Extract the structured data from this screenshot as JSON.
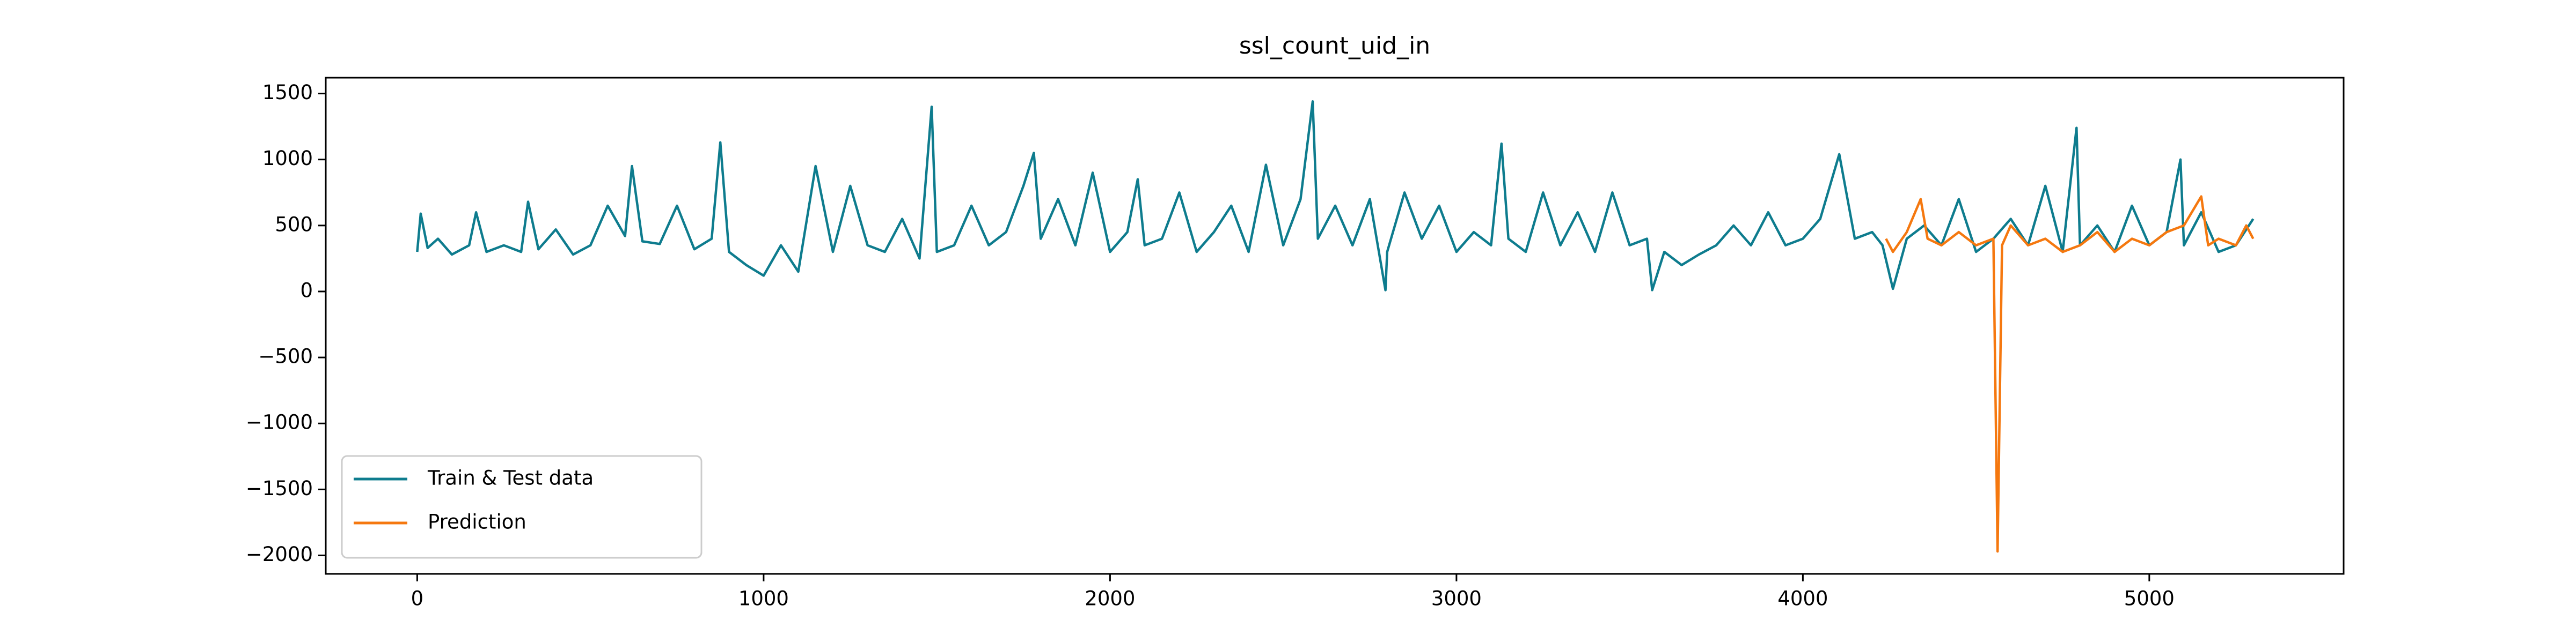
{
  "chart_data": {
    "type": "line",
    "title": "ssl_count_uid_in",
    "xlim": [
      -264,
      5561
    ],
    "ylim": [
      -2140,
      1620
    ],
    "xticks": [
      0,
      1000,
      2000,
      3000,
      4000,
      5000
    ],
    "yticks": [
      {
        "value": -2000,
        "label": "−2000"
      },
      {
        "value": -1500,
        "label": "−1500"
      },
      {
        "value": -1000,
        "label": "−1000"
      },
      {
        "value": -500,
        "label": "−500"
      },
      0,
      500,
      1000,
      1500
    ],
    "grid": false,
    "legend": "lower left",
    "series": [
      {
        "name": "Train & Test data",
        "color": "#0e7c8e",
        "x": [
          0,
          10,
          30,
          60,
          100,
          150,
          170,
          200,
          250,
          300,
          320,
          350,
          400,
          450,
          500,
          550,
          600,
          620,
          650,
          700,
          750,
          800,
          850,
          875,
          900,
          950,
          1000,
          1050,
          1100,
          1150,
          1200,
          1250,
          1300,
          1350,
          1400,
          1450,
          1485,
          1500,
          1550,
          1600,
          1650,
          1700,
          1750,
          1780,
          1800,
          1850,
          1900,
          1950,
          2000,
          2050,
          2080,
          2100,
          2150,
          2200,
          2250,
          2300,
          2350,
          2400,
          2450,
          2500,
          2550,
          2585,
          2600,
          2650,
          2700,
          2750,
          2795,
          2800,
          2850,
          2900,
          2950,
          3000,
          3050,
          3100,
          3130,
          3150,
          3200,
          3250,
          3300,
          3350,
          3400,
          3450,
          3500,
          3550,
          3565,
          3600,
          3650,
          3700,
          3750,
          3800,
          3850,
          3900,
          3950,
          4000,
          4050,
          4105,
          4150,
          4200,
          4230,
          4260,
          4300,
          4350,
          4400,
          4450,
          4500,
          4550,
          4600,
          4650,
          4700,
          4750,
          4790,
          4800,
          4850,
          4900,
          4950,
          5000,
          5050,
          5090,
          5100,
          5150,
          5200,
          5250,
          5300
        ],
        "values": [
          300,
          590,
          330,
          400,
          280,
          350,
          600,
          300,
          350,
          300,
          680,
          320,
          470,
          280,
          350,
          650,
          420,
          950,
          380,
          360,
          650,
          320,
          400,
          1130,
          300,
          200,
          120,
          350,
          150,
          950,
          300,
          800,
          350,
          300,
          550,
          250,
          1400,
          300,
          350,
          650,
          350,
          450,
          800,
          1050,
          400,
          700,
          350,
          900,
          300,
          450,
          850,
          350,
          400,
          750,
          300,
          450,
          650,
          300,
          960,
          350,
          700,
          1440,
          400,
          650,
          350,
          700,
          10,
          300,
          750,
          400,
          650,
          300,
          450,
          350,
          1120,
          400,
          300,
          750,
          350,
          600,
          300,
          750,
          350,
          400,
          10,
          300,
          200,
          280,
          350,
          500,
          350,
          600,
          350,
          400,
          550,
          1040,
          400,
          450,
          350,
          20,
          400,
          500,
          350,
          700,
          300,
          400,
          550,
          350,
          800,
          300,
          1240,
          350,
          500,
          300,
          650,
          350,
          450,
          1000,
          350,
          600,
          300,
          350,
          550
        ]
      },
      {
        "name": "Prediction",
        "color": "#f5780f",
        "x": [
          4240,
          4260,
          4300,
          4340,
          4360,
          4400,
          4450,
          4500,
          4550,
          4562,
          4575,
          4600,
          4650,
          4700,
          4750,
          4800,
          4850,
          4900,
          4950,
          5000,
          5050,
          5100,
          5150,
          5170,
          5200,
          5250,
          5280,
          5300
        ],
        "values": [
          400,
          300,
          450,
          700,
          400,
          350,
          450,
          350,
          400,
          -1970,
          350,
          500,
          350,
          400,
          300,
          350,
          450,
          300,
          400,
          350,
          450,
          500,
          720,
          350,
          400,
          350,
          500,
          400
        ]
      }
    ]
  }
}
